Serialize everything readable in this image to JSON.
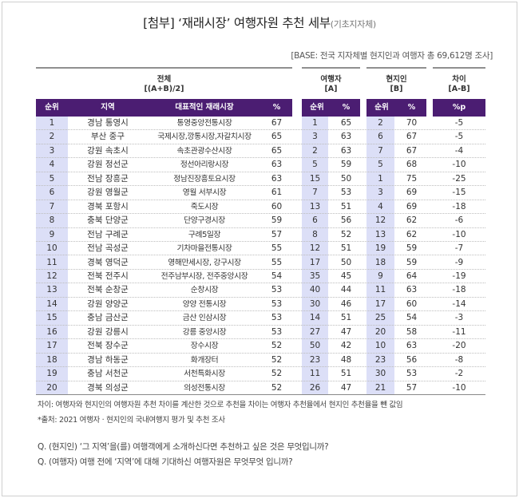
{
  "title": {
    "main": "[첨부] ‘재래시장’ 여행자원 추천 세부",
    "sub": "(기초지자체)"
  },
  "base_note": "[BASE: 전국 지자체별 현지인과 여행자 총 69,612명 조사]",
  "groups": {
    "total": {
      "line1": "전체",
      "line2": "[(A+B)/2]"
    },
    "traveler": {
      "line1": "여행자",
      "line2": "[A]"
    },
    "local": {
      "line1": "현지인",
      "line2": "[B]"
    },
    "diff": {
      "line1": "차이",
      "line2": "[A-B]"
    }
  },
  "columns": [
    "순위",
    "지역",
    "대표적인 재래시장",
    "%",
    "순위",
    "%",
    "순위",
    "%",
    "%p"
  ],
  "header_color": "#4b1d72",
  "shade_color": "#dcdff7",
  "rows": [
    {
      "rank": "1",
      "region": "경남 통영시",
      "market": "통영중앙전통시장",
      "pct": "67",
      "a_rank": "1",
      "a_pct": "65",
      "b_rank": "2",
      "b_pct": "70",
      "diff": "-5"
    },
    {
      "rank": "2",
      "region": "부산 중구",
      "market": "국제시장,깡통시장,자갈치시장",
      "pct": "65",
      "a_rank": "3",
      "a_pct": "63",
      "b_rank": "6",
      "b_pct": "67",
      "diff": "-5"
    },
    {
      "rank": "3",
      "region": "강원 속초시",
      "market": "속초관광수산시장",
      "pct": "65",
      "a_rank": "2",
      "a_pct": "63",
      "b_rank": "7",
      "b_pct": "67",
      "diff": "-4"
    },
    {
      "rank": "4",
      "region": "강원 정선군",
      "market": "정선아리랑시장",
      "pct": "63",
      "a_rank": "5",
      "a_pct": "59",
      "b_rank": "5",
      "b_pct": "68",
      "diff": "-10"
    },
    {
      "rank": "5",
      "region": "전남 장흥군",
      "market": "정남진장흥토요시장",
      "pct": "63",
      "a_rank": "15",
      "a_pct": "50",
      "b_rank": "1",
      "b_pct": "75",
      "diff": "-25"
    },
    {
      "rank": "6",
      "region": "강원 영월군",
      "market": "영월 서부시장",
      "pct": "61",
      "a_rank": "7",
      "a_pct": "53",
      "b_rank": "3",
      "b_pct": "69",
      "diff": "-15"
    },
    {
      "rank": "7",
      "region": "경북 포항시",
      "market": "죽도시장",
      "pct": "60",
      "a_rank": "13",
      "a_pct": "51",
      "b_rank": "4",
      "b_pct": "69",
      "diff": "-18"
    },
    {
      "rank": "8",
      "region": "충북 단양군",
      "market": "단양구경시장",
      "pct": "59",
      "a_rank": "6",
      "a_pct": "56",
      "b_rank": "12",
      "b_pct": "62",
      "diff": "-6"
    },
    {
      "rank": "9",
      "region": "전남 구례군",
      "market": "구례5일장",
      "pct": "57",
      "a_rank": "8",
      "a_pct": "52",
      "b_rank": "13",
      "b_pct": "62",
      "diff": "-10"
    },
    {
      "rank": "10",
      "region": "전남 곡성군",
      "market": "기차마을전통시장",
      "pct": "55",
      "a_rank": "12",
      "a_pct": "51",
      "b_rank": "19",
      "b_pct": "59",
      "diff": "-7"
    },
    {
      "rank": "11",
      "region": "경북 영덕군",
      "market": "영해만세시장, 강구시장",
      "pct": "55",
      "a_rank": "17",
      "a_pct": "50",
      "b_rank": "18",
      "b_pct": "59",
      "diff": "-9"
    },
    {
      "rank": "12",
      "region": "전북 전주시",
      "market": "전주남부시장, 전주중앙시장",
      "pct": "54",
      "a_rank": "35",
      "a_pct": "45",
      "b_rank": "9",
      "b_pct": "64",
      "diff": "-19"
    },
    {
      "rank": "13",
      "region": "전북 순창군",
      "market": "순창시장",
      "pct": "53",
      "a_rank": "40",
      "a_pct": "44",
      "b_rank": "11",
      "b_pct": "63",
      "diff": "-18"
    },
    {
      "rank": "14",
      "region": "강원 양양군",
      "market": "양양 전통시장",
      "pct": "53",
      "a_rank": "30",
      "a_pct": "46",
      "b_rank": "17",
      "b_pct": "60",
      "diff": "-14"
    },
    {
      "rank": "15",
      "region": "충남 금산군",
      "market": "금산 인삼시장",
      "pct": "53",
      "a_rank": "14",
      "a_pct": "51",
      "b_rank": "25",
      "b_pct": "54",
      "diff": "-3"
    },
    {
      "rank": "16",
      "region": "강원 강릉시",
      "market": "강릉 중앙시장",
      "pct": "53",
      "a_rank": "27",
      "a_pct": "47",
      "b_rank": "20",
      "b_pct": "58",
      "diff": "-11"
    },
    {
      "rank": "17",
      "region": "전북 장수군",
      "market": "장수시장",
      "pct": "52",
      "a_rank": "50",
      "a_pct": "42",
      "b_rank": "10",
      "b_pct": "63",
      "diff": "-20"
    },
    {
      "rank": "18",
      "region": "경남 하동군",
      "market": "화개장터",
      "pct": "52",
      "a_rank": "23",
      "a_pct": "48",
      "b_rank": "23",
      "b_pct": "56",
      "diff": "-8"
    },
    {
      "rank": "19",
      "region": "충남 서천군",
      "market": "서천특화시장",
      "pct": "52",
      "a_rank": "11",
      "a_pct": "51",
      "b_rank": "30",
      "b_pct": "53",
      "diff": "-2"
    },
    {
      "rank": "20",
      "region": "경북 의성군",
      "market": "의성전통시장",
      "pct": "52",
      "a_rank": "26",
      "a_pct": "47",
      "b_rank": "21",
      "b_pct": "57",
      "diff": "-10"
    }
  ],
  "notes": {
    "diff": "차이: 여행자와 현지인의 여행자원 추천 차이를 계산한 것으로 추천을 차이는 여행자 추천율에서 현지인 추천율을 뺀 값임",
    "source": "*출처: 2021 여행자 · 현지인의 국내여행지 평가 및 추천 조사"
  },
  "questions": {
    "local": "Q. (현지인) ‘그 지역’을(를) 여행객에게 소개하신다면 추천하고 싶은 것은 무엇입니까?",
    "traveler": "Q. (여행자) 여행 전에 ‘지역’에 대해 기대하신 여행자원은 무엇무엇 입니까?"
  }
}
